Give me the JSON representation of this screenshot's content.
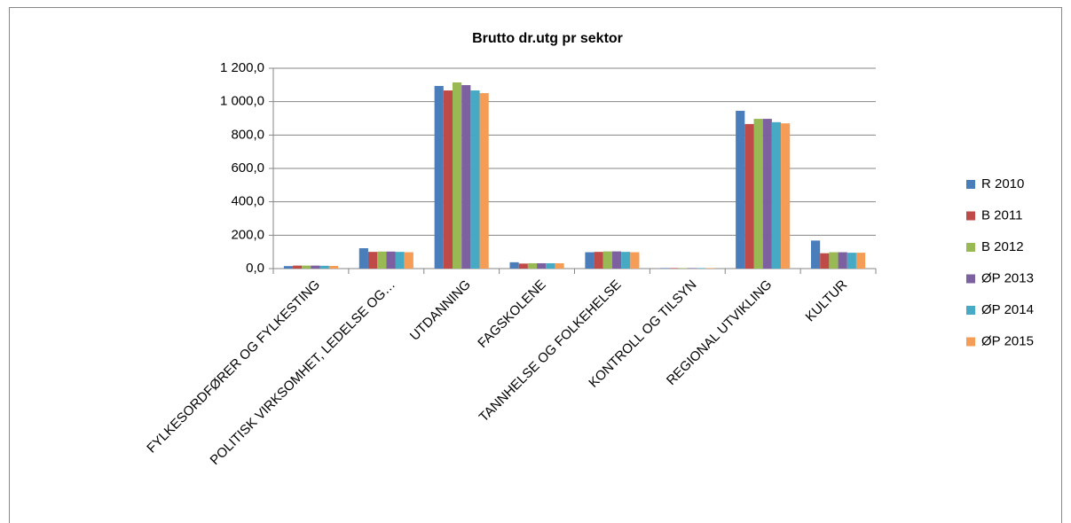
{
  "chart_data": {
    "type": "bar",
    "title": "Brutto dr.utg pr sektor",
    "categories": [
      "FYLKESORDFØRER OG FYLKESTING",
      "POLITISK VIRKSOMHET, LEDELSE OG…",
      "UTDANNING",
      "FAGSKOLENE",
      "TANNHELSE OG FOLKEHELSE",
      "KONTROLL OG TILSYN",
      "REGIONAL UTVIKLING",
      "KULTUR"
    ],
    "series": [
      {
        "name": "R 2010",
        "color": "#4a7ebb",
        "values": [
          15,
          122,
          1094,
          38,
          98,
          3,
          945,
          168
        ]
      },
      {
        "name": "B 2011",
        "color": "#be4b48",
        "values": [
          18,
          100,
          1067,
          30,
          100,
          3,
          866,
          92
        ]
      },
      {
        "name": "B 2012",
        "color": "#98b954",
        "values": [
          18,
          102,
          1115,
          32,
          103,
          3,
          897,
          98
        ]
      },
      {
        "name": "ØP 2013",
        "color": "#7d60a0",
        "values": [
          18,
          102,
          1099,
          32,
          103,
          3,
          897,
          98
        ]
      },
      {
        "name": "ØP 2014",
        "color": "#46aac5",
        "values": [
          17,
          100,
          1067,
          32,
          100,
          3,
          877,
          95
        ]
      },
      {
        "name": "ØP 2015",
        "color": "#f59d56",
        "values": [
          16,
          98,
          1051,
          32,
          98,
          3,
          870,
          95
        ]
      }
    ],
    "ylim": [
      0,
      1200
    ],
    "yticks": [
      {
        "value": 0,
        "label": "0,0"
      },
      {
        "value": 200,
        "label": "200,0"
      },
      {
        "value": 400,
        "label": "400,0"
      },
      {
        "value": 600,
        "label": "600,0"
      },
      {
        "value": 800,
        "label": "800,0"
      },
      {
        "value": 1000,
        "label": "1 000,0"
      },
      {
        "value": 1200,
        "label": "1 200,0"
      }
    ],
    "grid": true,
    "legend": "right"
  }
}
